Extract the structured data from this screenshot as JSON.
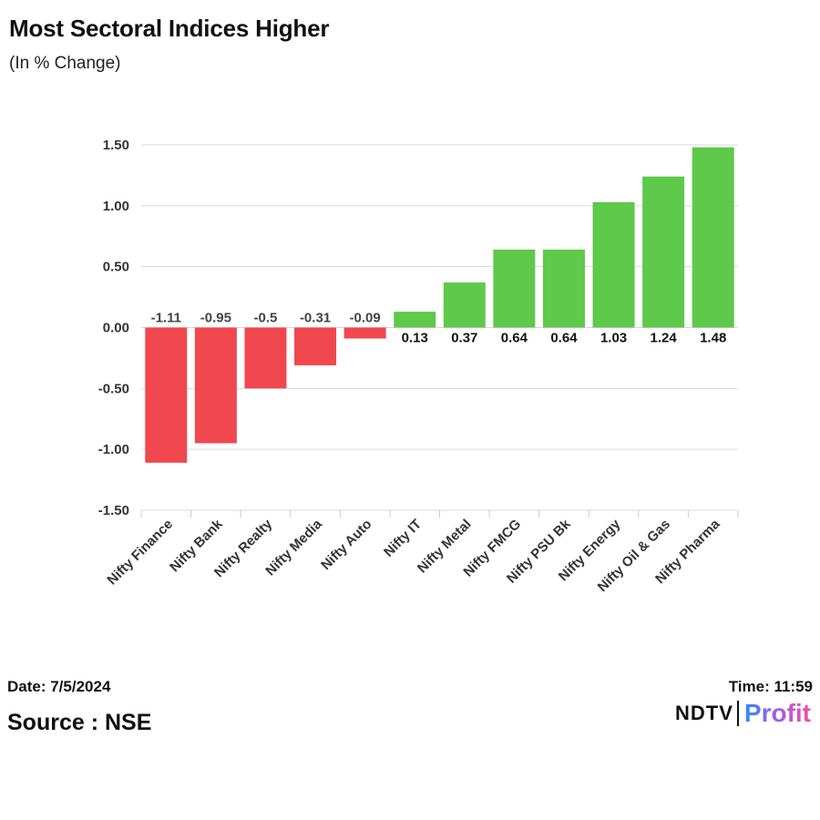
{
  "header": {
    "title": "Most Sectoral Indices Higher",
    "subtitle": "(In % Change)"
  },
  "chart_data": {
    "type": "bar",
    "title": "Most Sectoral Indices Higher",
    "subtitle": "(In % Change)",
    "xlabel": "",
    "ylabel": "",
    "ylim": [
      -1.5,
      1.5
    ],
    "yticks": [
      1.5,
      1.0,
      0.5,
      0.0,
      -0.5,
      -1.0,
      -1.5
    ],
    "ytick_labels": [
      "1.50",
      "1.00",
      "0.50",
      "0.00",
      "-0.50",
      "-1.00",
      "-1.50"
    ],
    "grid": true,
    "categories": [
      "Nifty Finance",
      "Nifty Bank",
      "Nifty Realty",
      "Nifty Media",
      "Nifty Auto",
      "Nifty IT",
      "Nifty Metal",
      "Nifty FMCG",
      "Nifty PSU Bk",
      "Nifty Energy",
      "Nifty Oil & Gas",
      "Nifty Pharma"
    ],
    "values": [
      -1.11,
      -0.95,
      -0.5,
      -0.31,
      -0.09,
      0.13,
      0.37,
      0.64,
      0.64,
      1.03,
      1.24,
      1.48
    ],
    "value_labels": [
      "-1.11",
      "-0.95",
      "-0.5",
      "-0.31",
      "-0.09",
      "0.13",
      "0.37",
      "0.64",
      "0.64",
      "1.03",
      "1.24",
      "1.48"
    ],
    "colors": {
      "positive": "#5ec94a",
      "negative": "#f0484e",
      "grid": "#d9d9d9",
      "axis": "#cccccc"
    }
  },
  "footer": {
    "date": "Date: 7/5/2024",
    "time": "Time: 11:59",
    "source": "Source : NSE",
    "brand_ndtv": "NDTV",
    "brand_profit": "Profit"
  }
}
